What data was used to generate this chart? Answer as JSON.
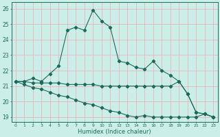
{
  "xlabel": "Humidex (Indice chaleur)",
  "xlim": [
    -0.5,
    23.5
  ],
  "ylim": [
    18.7,
    26.4
  ],
  "yticks": [
    19,
    20,
    21,
    22,
    23,
    24,
    25,
    26
  ],
  "xticks": [
    0,
    1,
    2,
    3,
    4,
    5,
    6,
    7,
    8,
    9,
    10,
    11,
    12,
    13,
    14,
    15,
    16,
    17,
    18,
    19,
    20,
    21,
    22,
    23
  ],
  "bg_color": "#cceee8",
  "grid_color": "#e8b4b8",
  "line_color": "#1a6b5a",
  "line1_x": [
    0,
    1,
    2,
    3,
    4,
    5,
    6,
    7,
    8,
    9,
    10,
    11,
    12,
    13,
    14,
    15,
    16,
    17,
    18,
    19,
    20,
    21,
    22,
    23
  ],
  "line1_y": [
    21.3,
    21.3,
    21.5,
    21.3,
    21.8,
    22.3,
    24.6,
    24.8,
    24.6,
    25.9,
    25.2,
    24.8,
    22.6,
    22.5,
    22.2,
    22.1,
    22.6,
    22.0,
    21.7,
    21.3,
    20.5,
    19.3,
    19.2,
    19.0
  ],
  "line2_x": [
    0,
    1,
    2,
    3,
    4,
    5,
    6,
    7,
    8,
    9,
    10,
    11,
    12,
    13,
    14,
    15,
    16,
    17,
    18,
    19,
    20,
    21,
    22,
    23
  ],
  "line2_y": [
    21.3,
    21.3,
    21.2,
    21.2,
    21.2,
    21.2,
    21.1,
    21.1,
    21.1,
    21.1,
    21.0,
    21.0,
    21.0,
    21.0,
    21.0,
    21.0,
    21.0,
    21.0,
    21.0,
    21.3,
    20.5,
    19.3,
    19.2,
    19.0
  ],
  "line3_x": [
    0,
    1,
    2,
    3,
    4,
    5,
    6,
    7,
    8,
    9,
    10,
    11,
    12,
    13,
    14,
    15,
    16,
    17,
    18,
    19,
    20,
    21,
    22,
    23
  ],
  "line3_y": [
    21.3,
    21.1,
    20.9,
    20.8,
    20.6,
    20.4,
    20.3,
    20.1,
    19.9,
    19.8,
    19.6,
    19.4,
    19.3,
    19.1,
    19.0,
    19.1,
    19.0,
    19.0,
    19.0,
    19.0,
    19.0,
    19.0,
    19.2,
    19.0
  ]
}
